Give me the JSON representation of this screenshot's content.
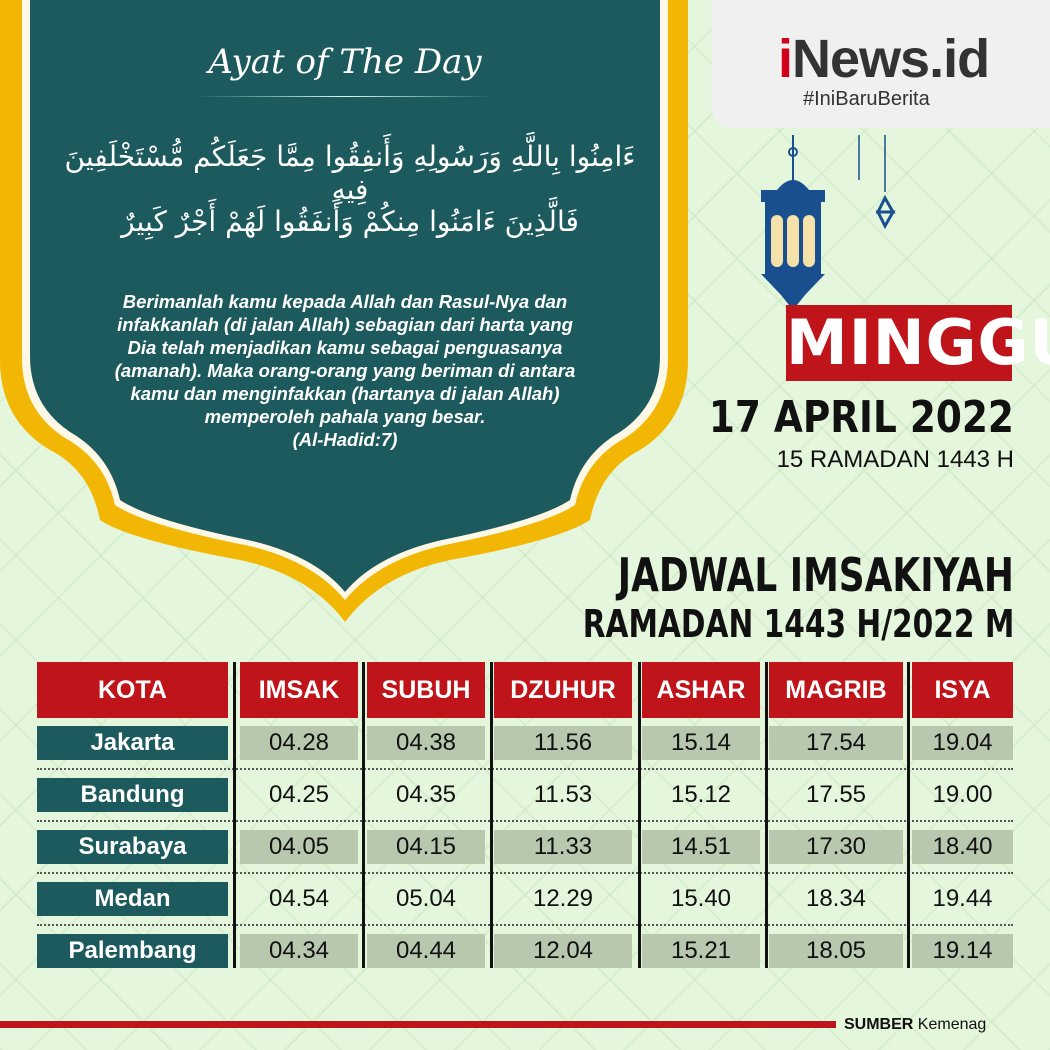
{
  "ayat": {
    "title": "Ayat of The Day",
    "arabic": [
      "ءَامِنُوا بِاللَّهِ وَرَسُولِهِ وَأَنفِقُوا مِمَّا جَعَلَكُم مُّسْتَخْلَفِينَ فِيهِ",
      "فَالَّذِينَ ءَامَنُوا مِنكُمْ وَأَنفَقُوا لَهُمْ أَجْرٌ كَبِيرٌ"
    ],
    "translation": [
      "Berimanlah kamu kepada Allah dan Rasul-Nya dan",
      "infakkanlah (di jalan Allah) sebagian dari harta yang",
      "Dia telah menjadikan kamu sebagai penguasanya",
      "(amanah). Maka orang-orang yang beriman di antara",
      "kamu dan menginfakkan (hartanya di jalan Allah)",
      "memperoleh pahala yang besar."
    ],
    "reference": "(Al-Hadid:7)"
  },
  "brand": {
    "logo_i": "i",
    "logo_rest": "News.id",
    "tagline": "#IniBaruBerita"
  },
  "date": {
    "day": "MINGGU",
    "gregorian": "17 APRIL 2022",
    "hijri": "15 RAMADAN 1443 H"
  },
  "heading": {
    "line1": "JADWAL IMSAKIYAH",
    "line2": "RAMADAN 1443 H/2022 M"
  },
  "colors": {
    "red": "#c0141b",
    "teal": "#1d5a5e",
    "gold": "#f2b705",
    "background": "#e4f6dc",
    "lantern": "#1a4f8f"
  },
  "table": {
    "headers": [
      "KOTA",
      "IMSAK",
      "SUBUH",
      "DZUHUR",
      "ASHAR",
      "MAGRIB",
      "ISYA"
    ],
    "rows": [
      [
        "Jakarta",
        "04.28",
        "04.38",
        "11.56",
        "15.14",
        "17.54",
        "19.04"
      ],
      [
        "Bandung",
        "04.25",
        "04.35",
        "11.53",
        "15.12",
        "17.55",
        "19.00"
      ],
      [
        "Surabaya",
        "04.05",
        "04.15",
        "11.33",
        "14.51",
        "17.30",
        "18.40"
      ],
      [
        "Medan",
        "04.54",
        "05.04",
        "12.29",
        "15.40",
        "18.34",
        "19.44"
      ],
      [
        "Palembang",
        "04.34",
        "04.44",
        "12.04",
        "15.21",
        "18.05",
        "19.14"
      ]
    ]
  },
  "footer": {
    "source_label": "SUMBER",
    "source_value": "Kemenag"
  }
}
